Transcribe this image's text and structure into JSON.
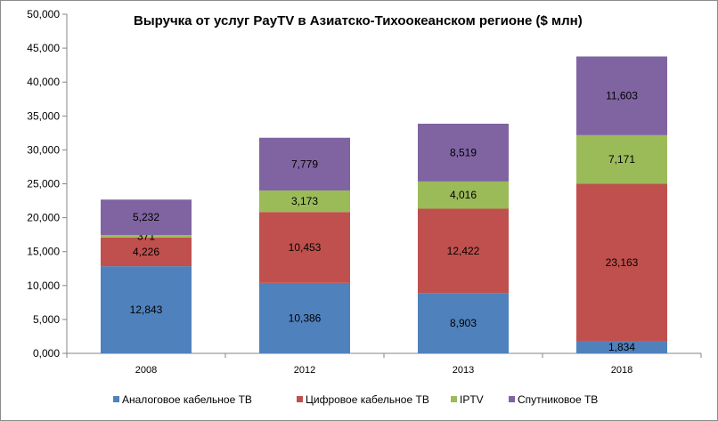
{
  "chart_data": {
    "type": "bar",
    "stacked": true,
    "title": "Выручка от услуг PayTV в Азиатско-Тихоокеанском регионе ($ млн)",
    "categories": [
      "2008",
      "2012",
      "2013",
      "2018"
    ],
    "series": [
      {
        "name": "Аналоговое кабельное ТВ",
        "color": "#4f81bd",
        "values": [
          12843,
          10386,
          8903,
          1834
        ],
        "labels": [
          "12,843",
          "10,386",
          "8,903",
          "1,834"
        ]
      },
      {
        "name": "Цифровое кабельное ТВ",
        "color": "#c0504d",
        "values": [
          4226,
          10453,
          12422,
          23163
        ],
        "labels": [
          "4,226",
          "10,453",
          "12,422",
          "23,163"
        ]
      },
      {
        "name": "IPTV",
        "color": "#9bbb59",
        "values": [
          371,
          3173,
          4016,
          7171
        ],
        "labels": [
          "371",
          "3,173",
          "4,016",
          "7,171"
        ]
      },
      {
        "name": "Спутниковое ТВ",
        "color": "#8064a2",
        "values": [
          5232,
          7779,
          8519,
          11603
        ],
        "labels": [
          "5,232",
          "7,779",
          "8,519",
          "11,603"
        ]
      }
    ],
    "yticks": [
      "0,000",
      "5,000",
      "10,000",
      "15,000",
      "20,000",
      "25,000",
      "30,000",
      "35,000",
      "40,000",
      "45,000",
      "50,000"
    ],
    "ylim": [
      0,
      50000
    ],
    "ytick_step": 5000,
    "grid": false,
    "legend_position": "bottom"
  }
}
